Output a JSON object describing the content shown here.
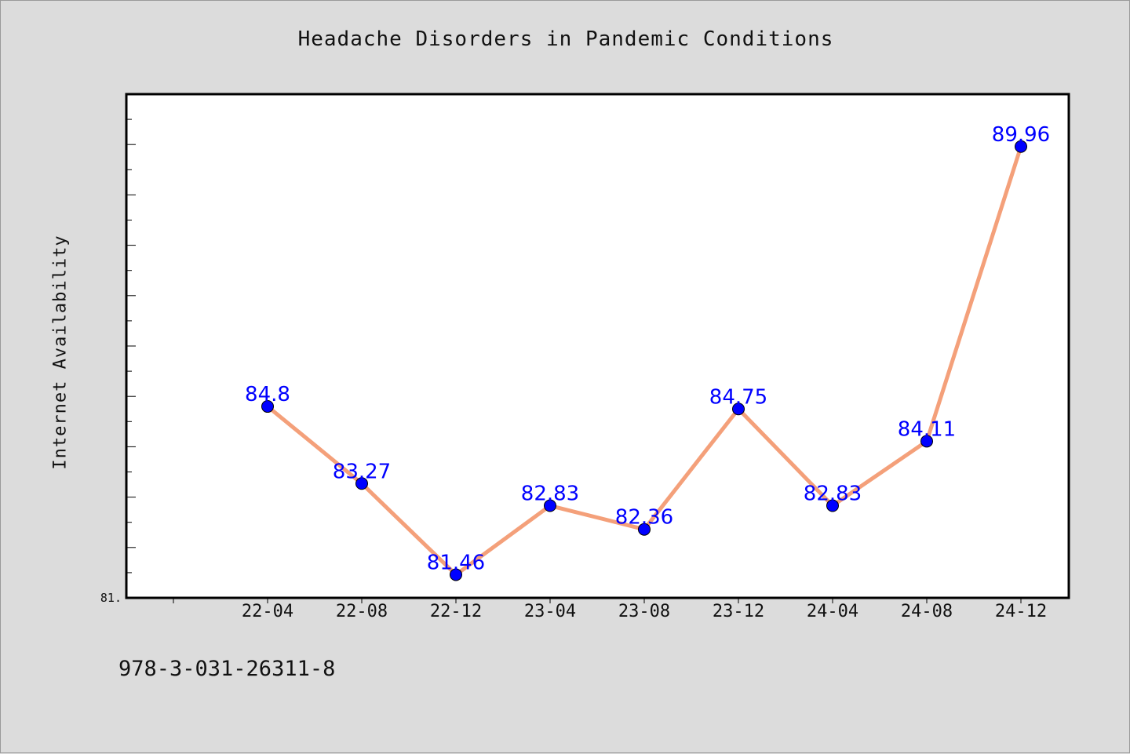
{
  "chart_data": {
    "type": "line",
    "title": "Headache Disorders in Pandemic Conditions",
    "xlabel": "",
    "ylabel": "Internet Availability",
    "categories": [
      "22-04",
      "22-08",
      "22-12",
      "23-04",
      "23-08",
      "23-12",
      "24-04",
      "24-08",
      "24-12"
    ],
    "values": [
      84.8,
      83.27,
      81.46,
      82.83,
      82.36,
      84.75,
      82.83,
      84.11,
      89.96
    ],
    "data_labels": [
      "84.8",
      "83.27",
      "81.46",
      "82.83",
      "82.36",
      "84.75",
      "82.83",
      "84.11",
      "89.96"
    ],
    "ylim": [
      81.0,
      91.0
    ],
    "y_tick_label": "81.",
    "line_color": "#f4a07a",
    "marker_color": "#0000ff",
    "label_color": "#0000ff",
    "grid": false,
    "legend": "none"
  },
  "footer": {
    "code": "978-3-031-26311-8"
  }
}
